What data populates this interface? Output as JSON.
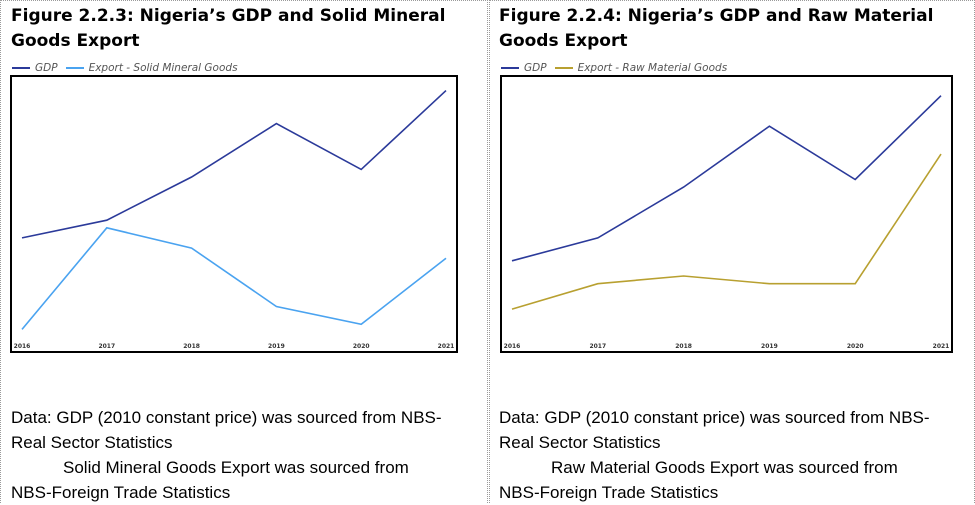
{
  "panels": [
    {
      "title": "Figure 2.2.3: Nigeria’s GDP and Solid Mineral Goods Export",
      "note_lines": [
        "Data: GDP (2010 constant price) was sourced from NBS-",
        "Real Sector Statistics",
        "Solid Mineral Goods Export was sourced from",
        "NBS-Foreign Trade Statistics"
      ]
    },
    {
      "title": "Figure 2.2.4: Nigeria’s GDP and Raw Material Goods Export",
      "note_lines": [
        "Data: GDP (2010 constant price) was sourced from NBS-",
        "Real Sector Statistics",
        "Raw Material Goods Export was sourced from",
        "NBS-Foreign Trade Statistics"
      ]
    }
  ],
  "chart_data": [
    {
      "type": "line",
      "title": "Figure 2.2.3: Nigeria’s GDP and Solid Mineral Goods Export",
      "x": [
        "2016",
        "2017",
        "2018",
        "2019",
        "2020",
        "2021"
      ],
      "ylim": [
        0,
        100
      ],
      "yaxis_labels_shown": false,
      "legend_position": "top-left",
      "grid": false,
      "series": [
        {
          "name": "GDP",
          "color": "#2B3A9A",
          "values": [
            39,
            46,
            63,
            84,
            66,
            97
          ]
        },
        {
          "name": "Export - Solid Mineral Goods",
          "color": "#4AA3F0",
          "values": [
            3,
            43,
            35,
            12,
            5,
            31
          ]
        }
      ]
    },
    {
      "type": "line",
      "title": "Figure 2.2.4: Nigeria’s GDP and Raw Material Goods Export",
      "x": [
        "2016",
        "2017",
        "2018",
        "2019",
        "2020",
        "2021"
      ],
      "ylim": [
        0,
        100
      ],
      "yaxis_labels_shown": false,
      "legend_position": "top-left",
      "grid": false,
      "series": [
        {
          "name": "GDP",
          "color": "#2B3A9A",
          "values": [
            30,
            39,
            59,
            83,
            62,
            95
          ]
        },
        {
          "name": "Export - Raw Material Goods",
          "color": "#B8A030",
          "values": [
            11,
            21,
            24,
            21,
            21,
            72
          ]
        }
      ]
    }
  ]
}
